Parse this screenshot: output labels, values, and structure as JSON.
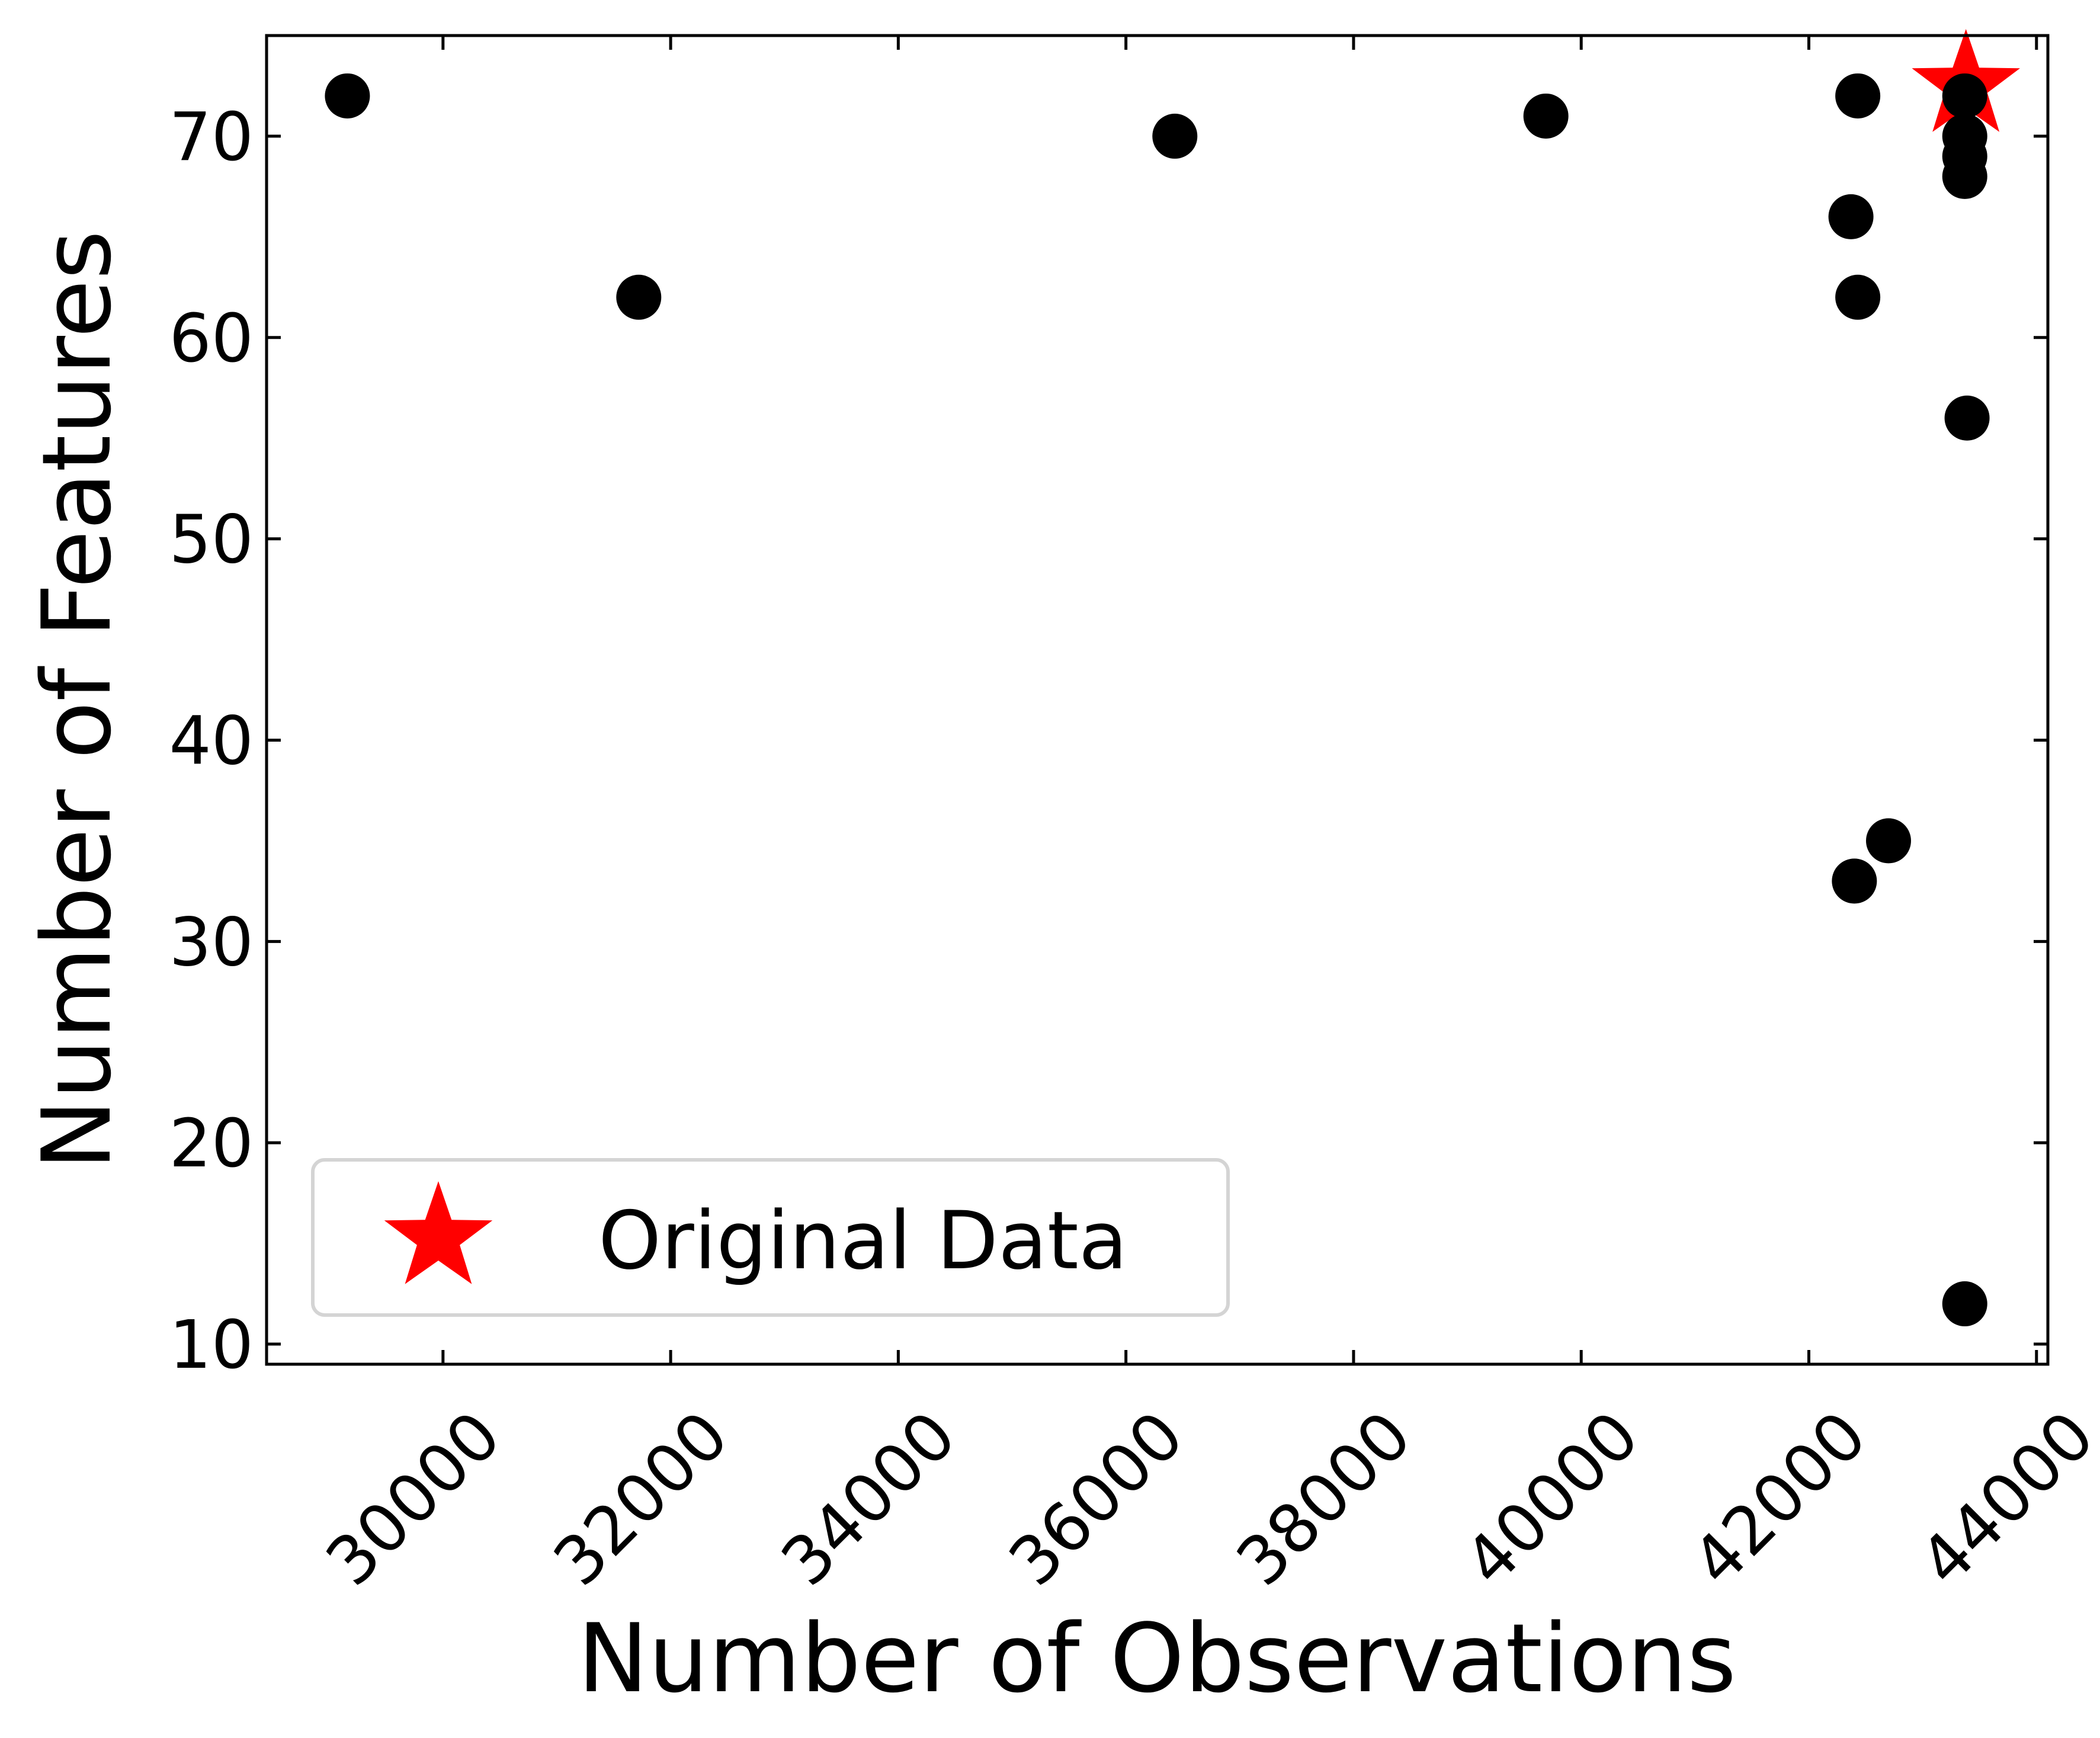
{
  "chart_data": {
    "type": "scatter",
    "title": "",
    "xlabel": "Number of Observations",
    "ylabel": "Number of Features",
    "xlim": [
      28450,
      44100
    ],
    "ylim": [
      9.0,
      75.0
    ],
    "xticks": [
      30000,
      32000,
      34000,
      36000,
      38000,
      40000,
      42000,
      44000
    ],
    "yticks": [
      10,
      20,
      30,
      40,
      50,
      60,
      70
    ],
    "xtick_labels": [
      "30000",
      "32000",
      "34000",
      "36000",
      "38000",
      "40000",
      "42000",
      "44000"
    ],
    "ytick_labels": [
      "10",
      "20",
      "30",
      "40",
      "50",
      "60",
      "70"
    ],
    "grid": false,
    "legend": {
      "position": "lower-left",
      "entries": [
        "Original Data"
      ]
    },
    "series": [
      {
        "marker": "circle",
        "color": "#000000",
        "points": [
          {
            "x": 29160,
            "y": 72
          },
          {
            "x": 31720,
            "y": 62
          },
          {
            "x": 36430,
            "y": 70
          },
          {
            "x": 39690,
            "y": 71
          },
          {
            "x": 42430,
            "y": 72
          },
          {
            "x": 42370,
            "y": 66
          },
          {
            "x": 42430,
            "y": 62
          },
          {
            "x": 42700,
            "y": 35
          },
          {
            "x": 42400,
            "y": 33
          },
          {
            "x": 43370,
            "y": 72
          },
          {
            "x": 43370,
            "y": 70
          },
          {
            "x": 43370,
            "y": 69
          },
          {
            "x": 43370,
            "y": 68
          },
          {
            "x": 43390,
            "y": 56
          },
          {
            "x": 43370,
            "y": 12
          }
        ]
      },
      {
        "name": "Original Data",
        "marker": "star",
        "color": "#ff0000",
        "points": [
          {
            "x": 43380,
            "y": 72.5
          }
        ]
      }
    ]
  }
}
